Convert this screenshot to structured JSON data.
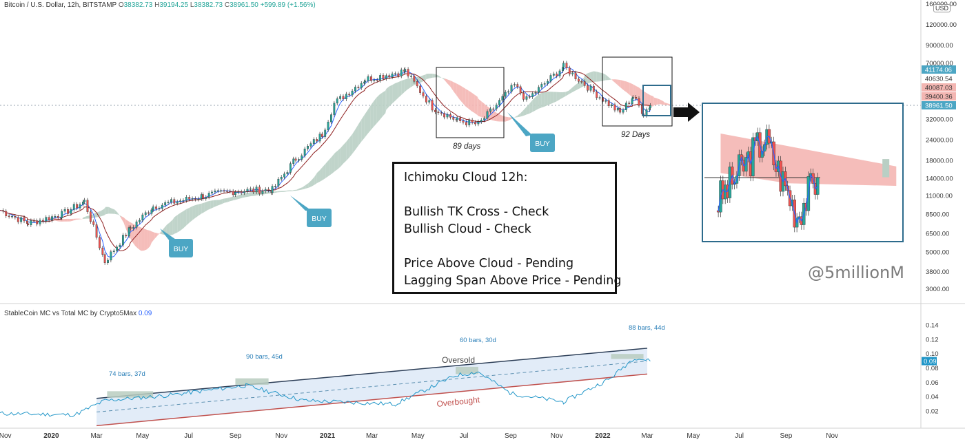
{
  "header": {
    "symbol": "Bitcoin / U.S. Dollar, 12h, BITSTAMP",
    "open_label": "O",
    "open": "38382.73",
    "high_label": "H",
    "high": "39194.25",
    "low_label": "L",
    "low": "38382.73",
    "close_label": "C",
    "close": "38961.50",
    "change": "+599.89 (+1.56%)"
  },
  "currency_badge": "USD",
  "price_axis_labels": [
    "160000.00",
    "120000.00",
    "90000.00",
    "70000.00",
    "32000.00",
    "24000.00",
    "18000.00",
    "14000.00",
    "11000.00",
    "8500.00",
    "6500.00",
    "5000.00",
    "3800.00",
    "3000.00"
  ],
  "price_badges": [
    {
      "text": "41174.06",
      "bg": "#4ca6c4",
      "fg": "#ffffff"
    },
    {
      "text": "40630.54",
      "bg": "#ffffff",
      "fg": "#333333"
    },
    {
      "text": "40087.03",
      "bg": "#f3b6b2",
      "fg": "#333333"
    },
    {
      "text": "39400.36",
      "bg": "#f3b6b2",
      "fg": "#333333"
    },
    {
      "text": "38961.50",
      "bg": "#4ca6c4",
      "fg": "#ffffff"
    }
  ],
  "annotations": {
    "buy": [
      "BUY",
      "BUY",
      "BUY"
    ],
    "box1_label": "89 days",
    "box2_label": "92 Days"
  },
  "info_box": {
    "lines": [
      "Ichimoku Cloud 12h:",
      "",
      "Bullish TK Cross - Check",
      "Bullish Cloud - Check",
      "",
      "Price Above Cloud - Pending",
      "Lagging Span Above Price - Pending"
    ]
  },
  "watermark": "@5millionM",
  "indicator": {
    "title": "StableCoin MC vs Total MC by Crypto5Max",
    "value": "0.09",
    "axis_labels": [
      "0.14",
      "0.12",
      "0.10",
      "0.08",
      "0.06",
      "0.04",
      "0.02"
    ],
    "current_badge": "0.09",
    "upper_label": "Oversold",
    "lower_label": "Overbought",
    "period_labels": [
      "74 bars, 37d",
      "90 bars, 45d",
      "60 bars, 30d",
      "88 bars, 44d"
    ]
  },
  "time_axis": [
    "Nov",
    "2020",
    "Mar",
    "May",
    "Jul",
    "Sep",
    "Nov",
    "2021",
    "Mar",
    "May",
    "Jul",
    "Sep",
    "Nov",
    "2022",
    "Mar",
    "May",
    "Jul",
    "Sep",
    "Nov"
  ],
  "colors": {
    "up_candle": "#26a69a",
    "down_candle": "#ef5350",
    "bear_cloud": "#f4b6b2",
    "bull_cloud": "#b9cfc4",
    "tenkan": "#2962ff",
    "kijun": "#8e1f1f",
    "indicator_line": "#2196c8",
    "channel_upper": "#2c3e57",
    "channel_lower": "#c0504d",
    "channel_fill": "#dde9f7"
  },
  "chart_data": {
    "type": "line",
    "title": "Bitcoin / U.S. Dollar, 12h, BITSTAMP",
    "y_scale": "log",
    "ylim": [
      3000,
      160000
    ],
    "series": [
      {
        "name": "Bitcoin / U.S. Dollar",
        "x": [
          "2019-10-25",
          "2019-12-01",
          "2020-01-15",
          "2020-02-14",
          "2020-03-12",
          "2020-04-15",
          "2020-05-15",
          "2020-07-20",
          "2020-09-01",
          "2020-10-20",
          "2020-11-20",
          "2020-12-25",
          "2021-01-10",
          "2021-02-20",
          "2021-04-14",
          "2021-05-20",
          "2021-06-22",
          "2021-07-20",
          "2021-09-06",
          "2021-09-22",
          "2021-11-10",
          "2021-12-20",
          "2022-01-24",
          "2022-02-10",
          "2022-02-24",
          "2022-03-05"
        ],
        "values": [
          9000,
          7500,
          8500,
          10200,
          4400,
          7000,
          9500,
          11000,
          11800,
          12000,
          18500,
          26000,
          40000,
          56000,
          63000,
          38000,
          31500,
          29800,
          51500,
          42000,
          67000,
          47000,
          35000,
          44000,
          35000,
          38961
        ]
      }
    ],
    "zoom_inset": {
      "x": [
        "2022-01-20",
        "2022-02-10",
        "2022-02-24",
        "2022-03-05"
      ],
      "values": [
        36000,
        44000,
        35000,
        38961
      ]
    },
    "indicator": {
      "name": "StableCoin MC vs Total MC by Crypto5Max",
      "ylim": [
        0,
        0.14
      ],
      "x": [
        "2019-10-25",
        "2020-02-01",
        "2020-03-12",
        "2020-06-01",
        "2020-09-15",
        "2020-12-01",
        "2021-04-01",
        "2021-06-20",
        "2021-07-20",
        "2021-09-01",
        "2021-11-10",
        "2022-01-10",
        "2022-02-12",
        "2022-03-05"
      ],
      "values": [
        0.017,
        0.015,
        0.035,
        0.042,
        0.056,
        0.035,
        0.03,
        0.07,
        0.075,
        0.045,
        0.033,
        0.065,
        0.095,
        0.09
      ],
      "channel_upper": {
        "x": [
          "2020-03-01",
          "2022-03-01"
        ],
        "values": [
          0.038,
          0.108
        ]
      },
      "channel_lower": {
        "x": [
          "2020-03-01",
          "2022-03-01"
        ],
        "values": [
          0.0,
          0.072
        ]
      }
    }
  }
}
